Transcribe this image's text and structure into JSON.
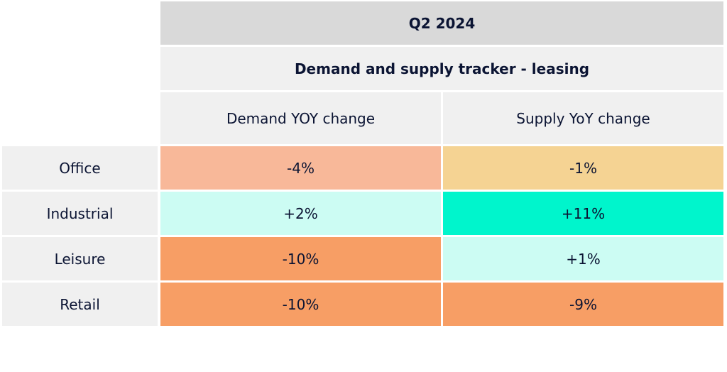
{
  "chart_data": {
    "type": "table",
    "period": "Q2 2024",
    "title": "Demand and supply tracker - leasing",
    "columns": [
      "Demand YOY change",
      "Supply YoY change"
    ],
    "rows": [
      {
        "label": "Office",
        "values": [
          "-4%",
          "-1%"
        ],
        "colors": [
          "#f8b899",
          "#f5d393"
        ]
      },
      {
        "label": "Industrial",
        "values": [
          "+2%",
          "+11%"
        ],
        "colors": [
          "#ccfcf3",
          "#00f5cc"
        ]
      },
      {
        "label": "Leisure",
        "values": [
          "-10%",
          "+1%"
        ],
        "colors": [
          "#f79e65",
          "#ccfcf3"
        ]
      },
      {
        "label": "Retail",
        "values": [
          "-10%",
          "-9%"
        ],
        "colors": [
          "#f79e65",
          "#f79e65"
        ]
      }
    ]
  }
}
